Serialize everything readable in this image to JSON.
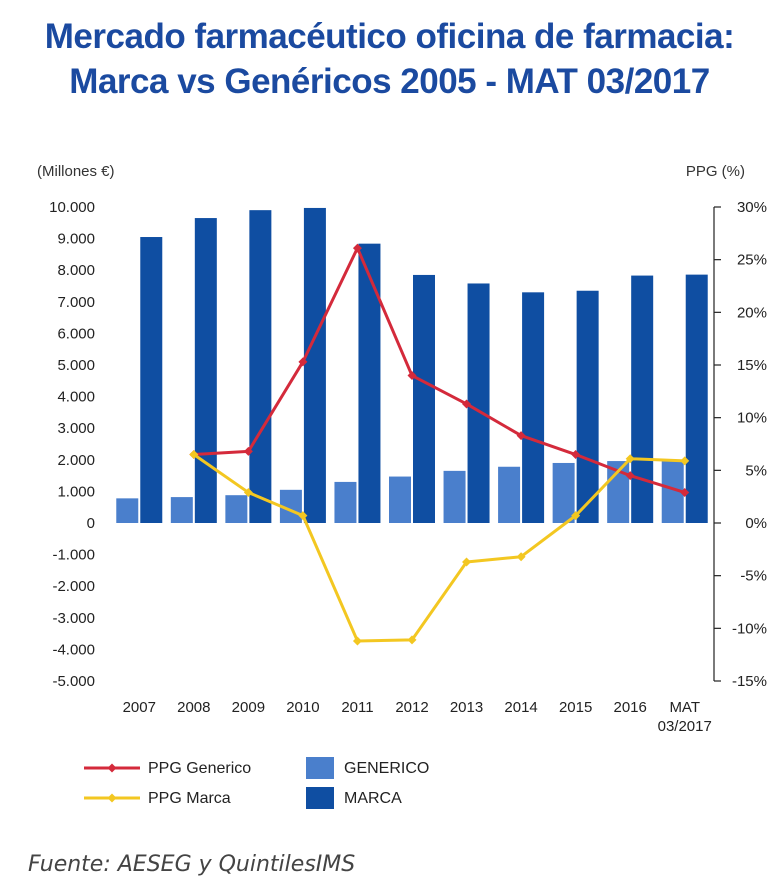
{
  "title_line1": "Mercado farmacéutico oficina de farmacia:",
  "title_line2": "Marca vs Genéricos 2005 - MAT 03/2017",
  "source": "Fuente: AESEG y QuintilesIMS",
  "colors": {
    "generico_bar": "#4a7fcc",
    "marca_bar": "#0f4ea2",
    "ppg_generico": "#d42a3b",
    "ppg_marca": "#f3c721",
    "title": "#1b4aa0"
  },
  "chart_data": {
    "type": "bar",
    "left_axis_unit": "(Millones €)",
    "right_axis_unit": "PPG (%)",
    "categories": [
      [
        "2007"
      ],
      [
        "2008"
      ],
      [
        "2009"
      ],
      [
        "2010"
      ],
      [
        "2011"
      ],
      [
        "2012"
      ],
      [
        "2013"
      ],
      [
        "2014"
      ],
      [
        "2015"
      ],
      [
        "2016"
      ],
      [
        "MAT",
        "03/2017"
      ]
    ],
    "ylim_left": [
      -5000,
      10000
    ],
    "ylim_right": [
      -15,
      30
    ],
    "left_ticks": [
      {
        "v": 10000,
        "label": "10.000"
      },
      {
        "v": 9000,
        "label": "9.000"
      },
      {
        "v": 8000,
        "label": "8.000"
      },
      {
        "v": 7000,
        "label": "7.000"
      },
      {
        "v": 6000,
        "label": "6.000"
      },
      {
        "v": 5000,
        "label": "5.000"
      },
      {
        "v": 4000,
        "label": "4.000"
      },
      {
        "v": 3000,
        "label": "3.000"
      },
      {
        "v": 2000,
        "label": "2.000"
      },
      {
        "v": 1000,
        "label": "1.000"
      },
      {
        "v": 0,
        "label": "0"
      },
      {
        "v": -1000,
        "label": "-1.000"
      },
      {
        "v": -2000,
        "label": "-2.000"
      },
      {
        "v": -3000,
        "label": "-3.000"
      },
      {
        "v": -4000,
        "label": "-4.000"
      },
      {
        "v": -5000,
        "label": "-5.000"
      }
    ],
    "right_ticks": [
      {
        "v": 30,
        "label": "30%"
      },
      {
        "v": 25,
        "label": "25%"
      },
      {
        "v": 20,
        "label": "20%"
      },
      {
        "v": 15,
        "label": "15%"
      },
      {
        "v": 10,
        "label": "10%"
      },
      {
        "v": 5,
        "label": "5%"
      },
      {
        "v": 0,
        "label": "0%"
      },
      {
        "v": -5,
        "label": "-5%"
      },
      {
        "v": -10,
        "label": "-10%"
      },
      {
        "v": -15,
        "label": "-15%"
      }
    ],
    "bar_series": [
      {
        "name": "GENERICO",
        "axis": "left",
        "values": [
          780,
          820,
          880,
          1050,
          1300,
          1470,
          1650,
          1780,
          1900,
          1960,
          1990
        ]
      },
      {
        "name": "MARCA",
        "axis": "left",
        "values": [
          9050,
          9650,
          9900,
          9970,
          8840,
          7850,
          7580,
          7300,
          7350,
          7830,
          7860
        ]
      }
    ],
    "line_series": [
      {
        "name": "PPG Generico",
        "axis": "right",
        "values": [
          null,
          6.5,
          6.8,
          15.3,
          26.1,
          14.0,
          11.3,
          8.3,
          6.5,
          4.5,
          2.9
        ]
      },
      {
        "name": "PPG Marca",
        "axis": "right",
        "values": [
          null,
          6.5,
          2.9,
          0.7,
          -11.2,
          -11.1,
          -3.7,
          -3.2,
          0.7,
          6.1,
          5.9
        ]
      }
    ],
    "legend": {
      "position": "bottom",
      "items": [
        {
          "label": "PPG Generico",
          "kind": "line",
          "series": "PPG Generico"
        },
        {
          "label": "GENERICO",
          "kind": "bar",
          "series": "GENERICO"
        },
        {
          "label": "PPG Marca",
          "kind": "line",
          "series": "PPG Marca"
        },
        {
          "label": "MARCA",
          "kind": "bar",
          "series": "MARCA"
        }
      ]
    }
  }
}
